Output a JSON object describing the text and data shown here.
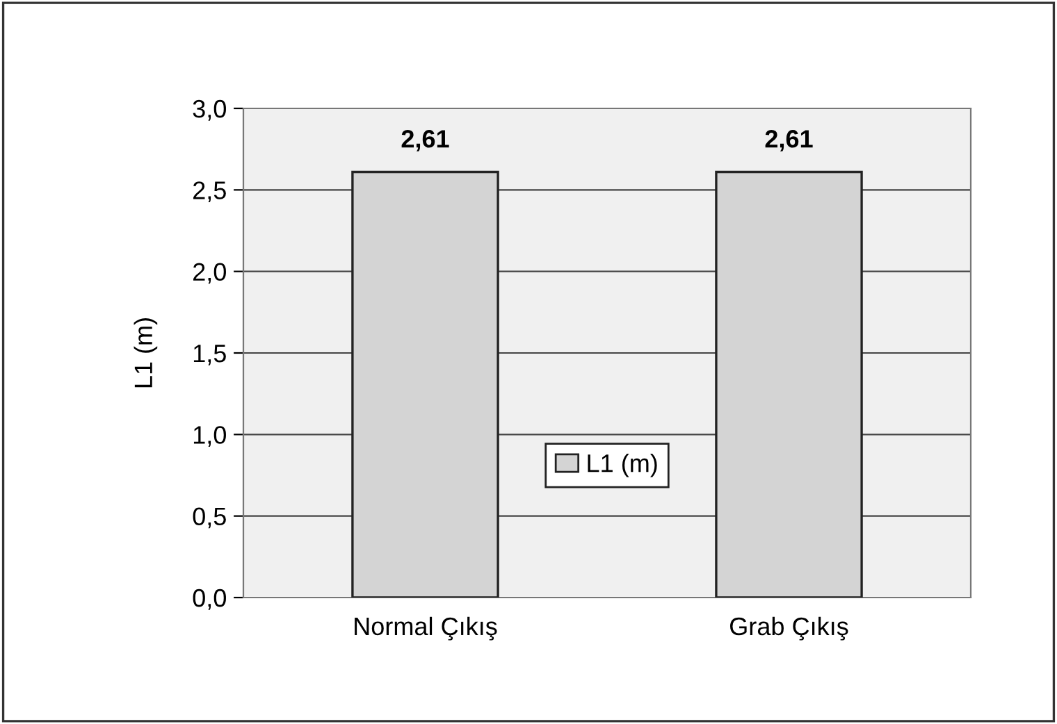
{
  "chart_data": {
    "type": "bar",
    "ylabel": "L1 (m)",
    "categories": [
      "Normal Çıkış",
      "Grab Çıkış"
    ],
    "series": [
      {
        "name": "L1 (m)",
        "color": "#d4d4d4",
        "values": [
          2.61,
          2.61
        ],
        "value_labels": [
          "2,61",
          "2,61"
        ]
      }
    ],
    "ylim": [
      0,
      3.0
    ],
    "yticks": [
      {
        "value": 0,
        "label": "0,0"
      },
      {
        "value": 0.5,
        "label": "0,5"
      },
      {
        "value": 1.0,
        "label": "1,0"
      },
      {
        "value": 1.5,
        "label": "1,5"
      },
      {
        "value": 2.0,
        "label": "2,0"
      },
      {
        "value": 2.5,
        "label": "2,5"
      },
      {
        "value": 3.0,
        "label": "3,0"
      }
    ],
    "grid": "y",
    "legend": "bottom"
  }
}
